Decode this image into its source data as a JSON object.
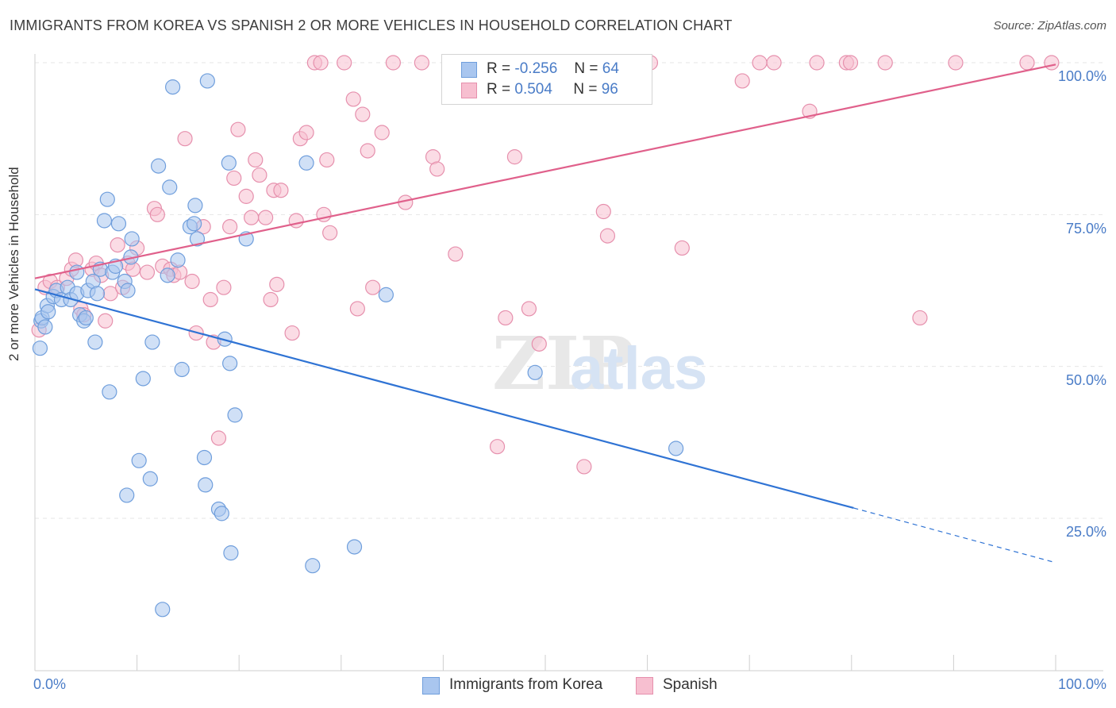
{
  "title": "IMMIGRANTS FROM KOREA VS SPANISH 2 OR MORE VEHICLES IN HOUSEHOLD CORRELATION CHART",
  "source": "Source: ZipAtlas.com",
  "watermark": {
    "zip": "ZIP",
    "atlas": "atlas"
  },
  "stats": [
    {
      "r_label": "R =",
      "r_value": "-0.256",
      "n_label": "N =",
      "n_value": "64",
      "color": "#a9c6ef",
      "border": "#6f9edc"
    },
    {
      "r_label": "R =",
      "r_value": "0.504",
      "n_label": "N =",
      "n_value": "96",
      "color": "#f7bfd0",
      "border": "#e690ad"
    }
  ],
  "legend": [
    {
      "label": "Immigrants from Korea",
      "color": "#a9c6ef",
      "border": "#6f9edc"
    },
    {
      "label": "Spanish",
      "color": "#f7bfd0",
      "border": "#e690ad"
    }
  ],
  "chart_data": {
    "type": "scatter",
    "title": "IMMIGRANTS FROM KOREA VS SPANISH 2 OR MORE VEHICLES IN HOUSEHOLD CORRELATION CHART",
    "xlabel": "",
    "ylabel": "2 or more Vehicles in Household",
    "xlim": [
      0,
      100
    ],
    "ylim": [
      2,
      102
    ],
    "x_ticks_labels": [
      "0.0%",
      "100.0%"
    ],
    "y_ticks": [
      25,
      50,
      75,
      100
    ],
    "y_tick_labels": [
      "25.0%",
      "50.0%",
      "75.0%",
      "100.0%"
    ],
    "grid": true,
    "series": [
      {
        "name": "Immigrants from Korea",
        "color": "#a9c6ef",
        "stroke": "#6f9edc",
        "line_color": "#2f73d4",
        "trend": {
          "x0": 0,
          "y0": 62.7,
          "x1": 80.2,
          "y1": 26.7,
          "dash_to_x": 100,
          "dash_to_y": 17.7
        },
        "points": [
          [
            0.5,
            53
          ],
          [
            0.6,
            57.5
          ],
          [
            0.7,
            58
          ],
          [
            1.0,
            56.5
          ],
          [
            1.2,
            60
          ],
          [
            1.3,
            59
          ],
          [
            1.8,
            61.5
          ],
          [
            2.1,
            62.5
          ],
          [
            2.6,
            61
          ],
          [
            3.2,
            63
          ],
          [
            3.5,
            61
          ],
          [
            4.1,
            62
          ],
          [
            4.1,
            65.5
          ],
          [
            4.4,
            58.5
          ],
          [
            4.8,
            57.5
          ],
          [
            5.0,
            58
          ],
          [
            5.2,
            62.5
          ],
          [
            5.7,
            64
          ],
          [
            5.9,
            54
          ],
          [
            6.1,
            62
          ],
          [
            6.4,
            66
          ],
          [
            6.8,
            74
          ],
          [
            7.1,
            77.5
          ],
          [
            7.6,
            65.5
          ],
          [
            7.9,
            66.5
          ],
          [
            8.2,
            73.5
          ],
          [
            8.8,
            64
          ],
          [
            9.1,
            62.5
          ],
          [
            9.4,
            68
          ],
          [
            9.5,
            71
          ],
          [
            7.3,
            45.8
          ],
          [
            10.6,
            48
          ],
          [
            10.2,
            34.5
          ],
          [
            11.3,
            31.5
          ],
          [
            9.0,
            28.8
          ],
          [
            11.5,
            54
          ],
          [
            12.1,
            83
          ],
          [
            12.5,
            10
          ],
          [
            13.0,
            65
          ],
          [
            13.2,
            79.5
          ],
          [
            13.5,
            96
          ],
          [
            14.0,
            67.5
          ],
          [
            14.4,
            49.5
          ],
          [
            15.2,
            73
          ],
          [
            15.6,
            73.5
          ],
          [
            15.7,
            76.5
          ],
          [
            15.9,
            71
          ],
          [
            16.6,
            35
          ],
          [
            16.7,
            30.5
          ],
          [
            16.9,
            97
          ],
          [
            18.0,
            26.5
          ],
          [
            18.3,
            25.8
          ],
          [
            18.6,
            54.5
          ],
          [
            19.0,
            83.5
          ],
          [
            19.1,
            50.5
          ],
          [
            19.2,
            19.3
          ],
          [
            19.6,
            42
          ],
          [
            20.7,
            71
          ],
          [
            26.6,
            83.5
          ],
          [
            27.2,
            17.2
          ],
          [
            31.3,
            20.3
          ],
          [
            34.4,
            61.8
          ],
          [
            49,
            49
          ],
          [
            62.8,
            36.5
          ]
        ]
      },
      {
        "name": "Spanish",
        "color": "#f7bfd0",
        "stroke": "#e690ad",
        "line_color": "#e0608b",
        "trend": {
          "x0": 0,
          "y0": 64.5,
          "x1": 100,
          "y1": 99.7
        },
        "points": [
          [
            0.4,
            56
          ],
          [
            1.0,
            63
          ],
          [
            1.5,
            64
          ],
          [
            2.2,
            63
          ],
          [
            3.1,
            64.5
          ],
          [
            3.6,
            66
          ],
          [
            4.0,
            67.5
          ],
          [
            4.5,
            59.5
          ],
          [
            4.8,
            58.5
          ],
          [
            5.6,
            66
          ],
          [
            6.0,
            67
          ],
          [
            6.5,
            65
          ],
          [
            6.9,
            57.5
          ],
          [
            7.4,
            62
          ],
          [
            8.1,
            70
          ],
          [
            8.6,
            63
          ],
          [
            9.1,
            67
          ],
          [
            9.6,
            66
          ],
          [
            10.0,
            69.5
          ],
          [
            11.0,
            65.5
          ],
          [
            11.7,
            76
          ],
          [
            12.0,
            75
          ],
          [
            12.5,
            66.5
          ],
          [
            13.3,
            66
          ],
          [
            13.6,
            65
          ],
          [
            14.2,
            65.5
          ],
          [
            14.7,
            87.5
          ],
          [
            15.4,
            64
          ],
          [
            15.8,
            55.5
          ],
          [
            16.5,
            73
          ],
          [
            17.2,
            61
          ],
          [
            17.5,
            54
          ],
          [
            18.0,
            38.2
          ],
          [
            18.5,
            63
          ],
          [
            19.1,
            73
          ],
          [
            19.5,
            81
          ],
          [
            19.9,
            89
          ],
          [
            20.7,
            78
          ],
          [
            21.2,
            74.5
          ],
          [
            21.6,
            84
          ],
          [
            22.0,
            81.5
          ],
          [
            22.6,
            74.5
          ],
          [
            23.1,
            61
          ],
          [
            23.4,
            79
          ],
          [
            23.7,
            63.5
          ],
          [
            24.1,
            79
          ],
          [
            25.2,
            55.5
          ],
          [
            25.6,
            74
          ],
          [
            26.0,
            87.5
          ],
          [
            26.6,
            88.5
          ],
          [
            27.4,
            100
          ],
          [
            28.0,
            100
          ],
          [
            28.3,
            75
          ],
          [
            28.6,
            84
          ],
          [
            28.9,
            72
          ],
          [
            30.3,
            100
          ],
          [
            31.2,
            94
          ],
          [
            31.6,
            59.5
          ],
          [
            32.1,
            91.5
          ],
          [
            32.6,
            85.5
          ],
          [
            33.1,
            63
          ],
          [
            34.0,
            88.5
          ],
          [
            35.1,
            100
          ],
          [
            36.3,
            77
          ],
          [
            37.9,
            100
          ],
          [
            39.0,
            84.5
          ],
          [
            39.4,
            82.5
          ],
          [
            41.2,
            68.5
          ],
          [
            43.7,
            100
          ],
          [
            45.0,
            97
          ],
          [
            45.3,
            36.8
          ],
          [
            46.1,
            58
          ],
          [
            47.0,
            84.5
          ],
          [
            48.4,
            59.5
          ],
          [
            49.0,
            100
          ],
          [
            49.4,
            53.7
          ],
          [
            52.4,
            100
          ],
          [
            53.8,
            33.5
          ],
          [
            55.0,
            100
          ],
          [
            55.7,
            75.5
          ],
          [
            56.1,
            71.5
          ],
          [
            57.1,
            100
          ],
          [
            60.3,
            100
          ],
          [
            63.4,
            69.5
          ],
          [
            69.3,
            97
          ],
          [
            71.0,
            100
          ],
          [
            72.4,
            100
          ],
          [
            75.9,
            92
          ],
          [
            76.6,
            100
          ],
          [
            79.5,
            100
          ],
          [
            79.9,
            100
          ],
          [
            83.3,
            100
          ],
          [
            86.7,
            58
          ],
          [
            90.2,
            100
          ],
          [
            99.6,
            100
          ],
          [
            97.2,
            100
          ]
        ]
      }
    ]
  }
}
